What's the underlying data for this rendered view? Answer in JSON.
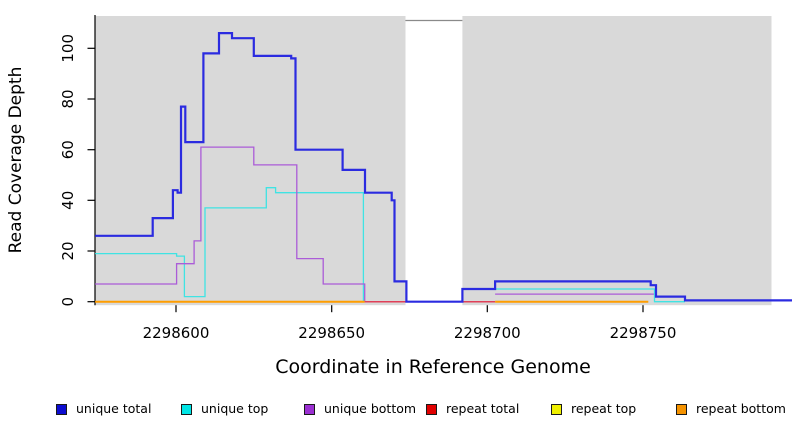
{
  "chart_data": {
    "type": "line",
    "subtype": "step-coverage",
    "title": "",
    "xlabel": "Coordinate in Reference Genome",
    "ylabel": "Read Coverage Depth",
    "xlim": [
      2298574,
      2298798
    ],
    "ylim": [
      0,
      113
    ],
    "x_ticks": [
      2298600,
      2298650,
      2298700,
      2298750
    ],
    "y_ticks": [
      0,
      20,
      40,
      60,
      80,
      100
    ],
    "grid": "off",
    "legend_position": "bottom",
    "background": {
      "panel_color": "#ffffff",
      "region_color": "#d9d9d9",
      "region_edge_color": "#8a8a8a",
      "covered_regions": [
        [
          2298574,
          2298673.7
        ],
        [
          2298692,
          2298791.3
        ]
      ],
      "gap_region": [
        2298673.7,
        2298692
      ]
    },
    "series": [
      {
        "name": "unique total",
        "color": "#2b2be0",
        "line_width": 2.2,
        "draw_order": 6,
        "runs": [
          {
            "points": [
              [
                2298574,
                26
              ],
              [
                2298592.5,
                33
              ],
              [
                2298599,
                44
              ],
              [
                2298600.5,
                43
              ],
              [
                2298601.6,
                77
              ],
              [
                2298603,
                63
              ],
              [
                2298608.8,
                98
              ],
              [
                2298613.8,
                106
              ],
              [
                2298618,
                104
              ],
              [
                2298625,
                97
              ],
              [
                2298637,
                96
              ],
              [
                2298638.4,
                60
              ],
              [
                2298653.5,
                52
              ],
              [
                2298660.7,
                43
              ],
              [
                2298669.3,
                40
              ],
              [
                2298670.2,
                8
              ],
              [
                2298674,
                0
              ],
              [
                2298692,
                5
              ],
              [
                2298702.5,
                8
              ],
              [
                2298752.5,
                6.5
              ],
              [
                2298754.2,
                2
              ],
              [
                2298763.5,
                0.5
              ]
            ],
            "end": 2298798
          }
        ]
      },
      {
        "name": "unique top",
        "color": "#3fe3e3",
        "line_width": 1.3,
        "draw_order": 1,
        "runs": [
          {
            "points": [
              [
                2298574,
                19
              ],
              [
                2298600.2,
                18
              ],
              [
                2298602.7,
                2
              ],
              [
                2298609.3,
                37
              ],
              [
                2298629,
                45
              ],
              [
                2298632,
                43
              ],
              [
                2298660.2,
                0
              ]
            ],
            "end": 2298692
          },
          {
            "points": [
              [
                2298702.5,
                5
              ],
              [
                2298753.7,
                0
              ]
            ],
            "end": 2298763.5
          }
        ]
      },
      {
        "name": "unique bottom",
        "color": "#ab5cd8",
        "line_width": 1.3,
        "draw_order": 2,
        "runs": [
          {
            "points": [
              [
                2298574,
                7
              ],
              [
                2298600.2,
                15
              ],
              [
                2298605.8,
                24
              ],
              [
                2298608,
                61
              ],
              [
                2298625,
                54
              ],
              [
                2298638.8,
                17
              ],
              [
                2298647.3,
                7
              ],
              [
                2298660.6,
                0
              ]
            ],
            "end": 2298692
          },
          {
            "points": [
              [
                2298702.5,
                3
              ]
            ],
            "end": 2298753.5
          }
        ]
      },
      {
        "name": "repeat total",
        "color": "#e04058",
        "line_width": 1.5,
        "draw_order": 3,
        "runs": [
          {
            "points": [
              [
                2298660.6,
                0
              ]
            ],
            "end": 2298702.5
          }
        ]
      },
      {
        "name": "repeat top",
        "color": "#f0f000",
        "line_width": 1.3,
        "draw_order": 4,
        "runs": []
      },
      {
        "name": "repeat bottom",
        "color": "#ff9e00",
        "line_width": 2,
        "draw_order": 5,
        "runs": [
          {
            "points": [
              [
                2298574,
                0
              ]
            ],
            "end": 2298660.6
          },
          {
            "points": [
              [
                2298702.5,
                0
              ]
            ],
            "end": 2298751.7
          }
        ]
      }
    ],
    "legend": {
      "items": [
        {
          "label": "unique total",
          "swatch_color": "#0d0dd0"
        },
        {
          "label": "unique top",
          "swatch_color": "#00e5e5"
        },
        {
          "label": "unique bottom",
          "swatch_color": "#9b30d2"
        },
        {
          "label": "repeat total",
          "swatch_color": "#e10000"
        },
        {
          "label": "repeat top",
          "swatch_color": "#f0f000"
        },
        {
          "label": "repeat bottom",
          "swatch_color": "#f59300"
        }
      ]
    }
  }
}
